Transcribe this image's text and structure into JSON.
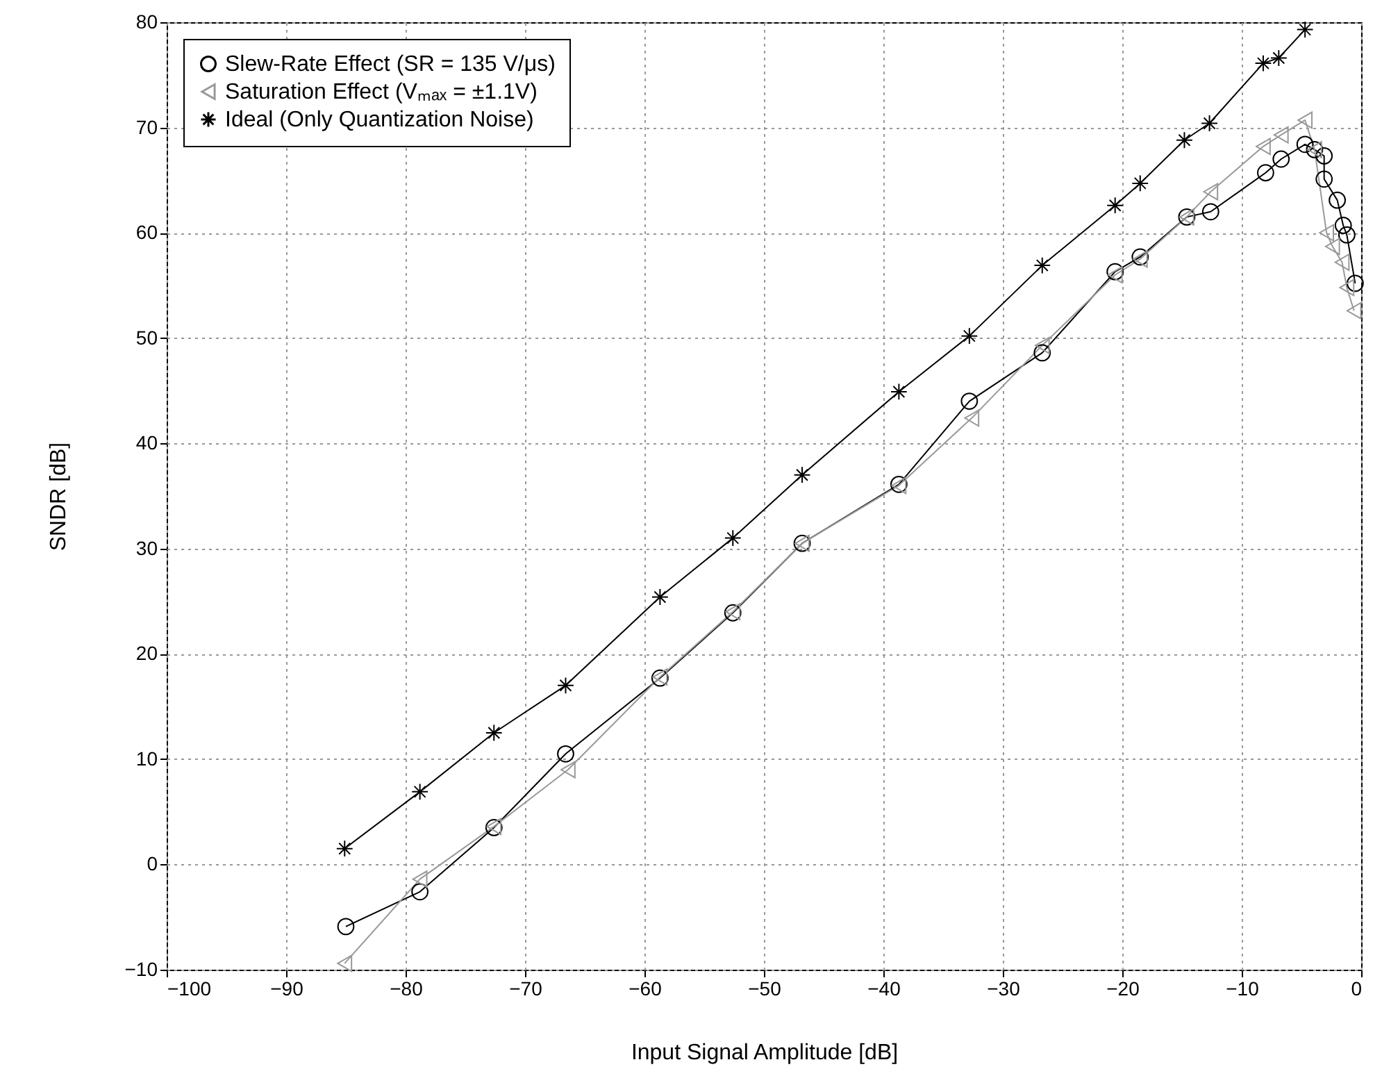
{
  "chart_data": {
    "type": "line",
    "xlabel": "Input Signal Amplitude [dB]",
    "ylabel": "SNDR [dB]",
    "xlim": [
      -100,
      0
    ],
    "xticks": [
      -100,
      -90,
      -80,
      -70,
      -60,
      -50,
      -40,
      -30,
      -20,
      -10,
      0
    ],
    "ylim": [
      -10,
      80
    ],
    "yticks": [
      -10,
      0,
      10,
      20,
      30,
      40,
      50,
      60,
      70,
      80
    ],
    "grid": true,
    "legend": "top left",
    "line_style": "solid",
    "series": [
      {
        "name": "Slew-Rate Effect (SR = 135 V/μs)",
        "color": "#000000",
        "marker": "circle",
        "x": [
          -85,
          -78.8,
          -72.6,
          -66.6,
          -58.7,
          -52.6,
          -46.8,
          -38.7,
          -32.8,
          -26.7,
          -20.6,
          -18.5,
          -14.6,
          -12.6,
          -8,
          -6.7,
          -4.7,
          -3.9,
          -3.1,
          -3.1,
          -2,
          -1.5,
          -1.2,
          -0.5
        ],
        "values": [
          -5.9,
          -2.6,
          3.5,
          10.5,
          17.7,
          23.9,
          30.5,
          36.1,
          44,
          48.6,
          56.3,
          57.7,
          61.5,
          62,
          65.7,
          67,
          68.4,
          67.9,
          67.3,
          65.1,
          63.1,
          60.7,
          59.8,
          55.2
        ]
      },
      {
        "name": "Saturation Effect (Vₘₐₓ = ±1.1V)",
        "color": "#999999",
        "marker": "triangle",
        "x": [
          -85.1,
          -78.8,
          -72.6,
          -66.4,
          -58.7,
          -52.6,
          -46.8,
          -38.7,
          -32.6,
          -26.7,
          -20.6,
          -18.5,
          -14.6,
          -12.6,
          -8.2,
          -6.7,
          -4.7,
          -3.9,
          -2.9,
          -2.4,
          -1.6,
          -1.2,
          -0.6
        ],
        "values": [
          -9.4,
          -1.4,
          3.6,
          9,
          17.8,
          24,
          30.5,
          36,
          42.4,
          49.3,
          56,
          57.5,
          61.5,
          63.9,
          68.2,
          69.3,
          70.7,
          67.9,
          60,
          58.7,
          57.2,
          54.8,
          52.6
        ]
      },
      {
        "name": "Ideal (Only Quantization Noise)",
        "color": "#000000",
        "marker": "cross",
        "x": [
          -85.1,
          -78.8,
          -72.6,
          -66.6,
          -58.7,
          -52.6,
          -46.8,
          -38.7,
          -32.8,
          -26.7,
          -20.6,
          -18.5,
          -14.8,
          -12.7,
          -8.2,
          -6.9,
          -4.7
        ],
        "values": [
          1.5,
          6.9,
          12.5,
          17,
          25.4,
          31,
          37,
          44.9,
          50.2,
          56.9,
          62.6,
          64.7,
          68.8,
          70.4,
          76.1,
          76.6,
          79.3
        ]
      }
    ]
  }
}
